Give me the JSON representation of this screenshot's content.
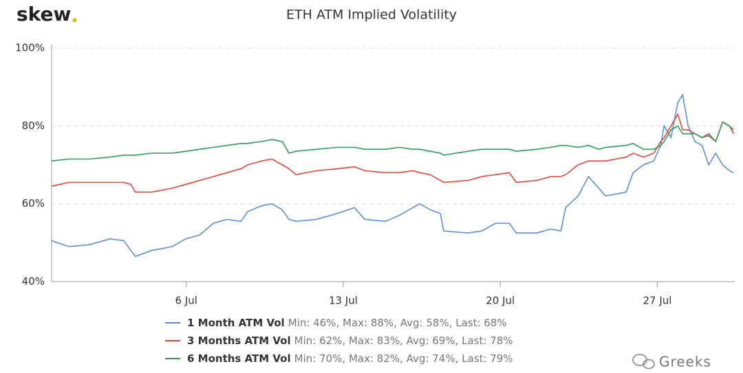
{
  "chart_data": {
    "type": "line",
    "logo_text": "skew",
    "logo_dot": ".",
    "title": "ETH ATM Implied Volatility",
    "watermark": "Greeks",
    "x": [
      0,
      0.77,
      1.69,
      2.61,
      3.22,
      3.53,
      3.74,
      4.45,
      5.37,
      5.98,
      6.6,
      7.21,
      7.82,
      8.44,
      8.74,
      9.36,
      9.82,
      10.28,
      10.58,
      10.89,
      11.81,
      12.73,
      13.5,
      13.96,
      14.88,
      15.49,
      16.1,
      16.41,
      16.87,
      17.33,
      17.48,
      18.56,
      19.17,
      19.79,
      20.4,
      20.71,
      21.63,
      22.24,
      22.7,
      22.91,
      23.47,
      23.93,
      24.39,
      24.69,
      25.61,
      25.92,
      26.38,
      26.84,
      27.15,
      27.3,
      27.61,
      27.91,
      28.13,
      28.37,
      28.68,
      28.99,
      29.29,
      29.6,
      29.91,
      30.21,
      30.4
    ],
    "series": [
      {
        "name": "1 Month ATM Vol",
        "stats": "Min: 46%, Max: 88%, Avg: 58%, Last: 68%",
        "color": "#5b8fd6",
        "values": [
          50.5,
          49,
          49.5,
          51,
          50.5,
          48,
          46.5,
          48,
          49,
          51,
          52,
          55,
          56,
          55.5,
          58,
          59.5,
          60,
          58.5,
          56,
          55.5,
          56,
          57.5,
          59,
          56,
          55.5,
          57,
          59,
          60,
          58.5,
          57.5,
          53,
          52.5,
          53,
          55,
          55,
          52.5,
          52.5,
          53.5,
          53,
          59,
          62,
          67,
          64,
          62,
          63,
          68,
          70,
          71,
          75,
          80,
          77,
          86,
          88,
          80,
          76,
          75,
          70,
          73,
          70,
          68.5,
          68
        ]
      },
      {
        "name": "3 Months ATM Vol",
        "stats": "Min: 62%, Max: 83%, Avg: 69%, Last: 78%",
        "color": "#e0463c",
        "values": [
          64.5,
          65.5,
          65.5,
          65.5,
          65.5,
          65,
          63,
          63,
          64,
          65,
          66,
          67,
          68,
          69,
          70,
          71,
          71.5,
          70,
          69,
          67.5,
          68.5,
          69,
          69.5,
          68.5,
          68,
          68,
          68.5,
          68,
          67.5,
          66,
          65.5,
          66,
          67,
          67.5,
          68,
          65.5,
          66,
          67,
          67,
          67.5,
          70,
          71,
          71,
          71,
          72,
          73,
          72,
          73,
          76,
          77,
          80,
          83,
          79,
          79,
          78,
          77,
          78,
          76,
          81,
          80,
          78
        ]
      },
      {
        "name": "6 Months ATM Vol",
        "stats": "Min: 70%, Max: 82%, Avg: 74%, Last: 79%",
        "color": "#2e9a5a",
        "values": [
          71,
          71.5,
          71.5,
          72,
          72.5,
          72.5,
          72.5,
          73,
          73,
          73.5,
          74,
          74.5,
          75,
          75.5,
          75.5,
          76,
          76.5,
          76,
          73,
          73.5,
          74,
          74.5,
          74.5,
          74,
          74,
          74.5,
          74,
          74,
          73.5,
          73,
          72.5,
          73.5,
          74,
          74,
          74,
          73.5,
          74,
          74.5,
          75,
          75,
          74.5,
          75,
          74,
          74.5,
          75,
          75.5,
          74,
          74,
          75,
          76,
          79,
          80,
          78,
          78,
          78,
          77,
          77.5,
          76,
          81,
          80,
          79
        ]
      }
    ],
    "xlim": [
      0,
      30.45
    ],
    "xticks": [
      {
        "value": 6,
        "label": "6 Jul"
      },
      {
        "value": 13,
        "label": "13 Jul"
      },
      {
        "value": 20,
        "label": "20 Jul"
      },
      {
        "value": 27,
        "label": "27 Jul"
      }
    ],
    "ylim": [
      40,
      100
    ],
    "yticks": [
      {
        "value": 40,
        "label": "40%"
      },
      {
        "value": 60,
        "label": "60%"
      },
      {
        "value": 80,
        "label": "80%"
      },
      {
        "value": 100,
        "label": "100%"
      }
    ],
    "grid": true
  }
}
